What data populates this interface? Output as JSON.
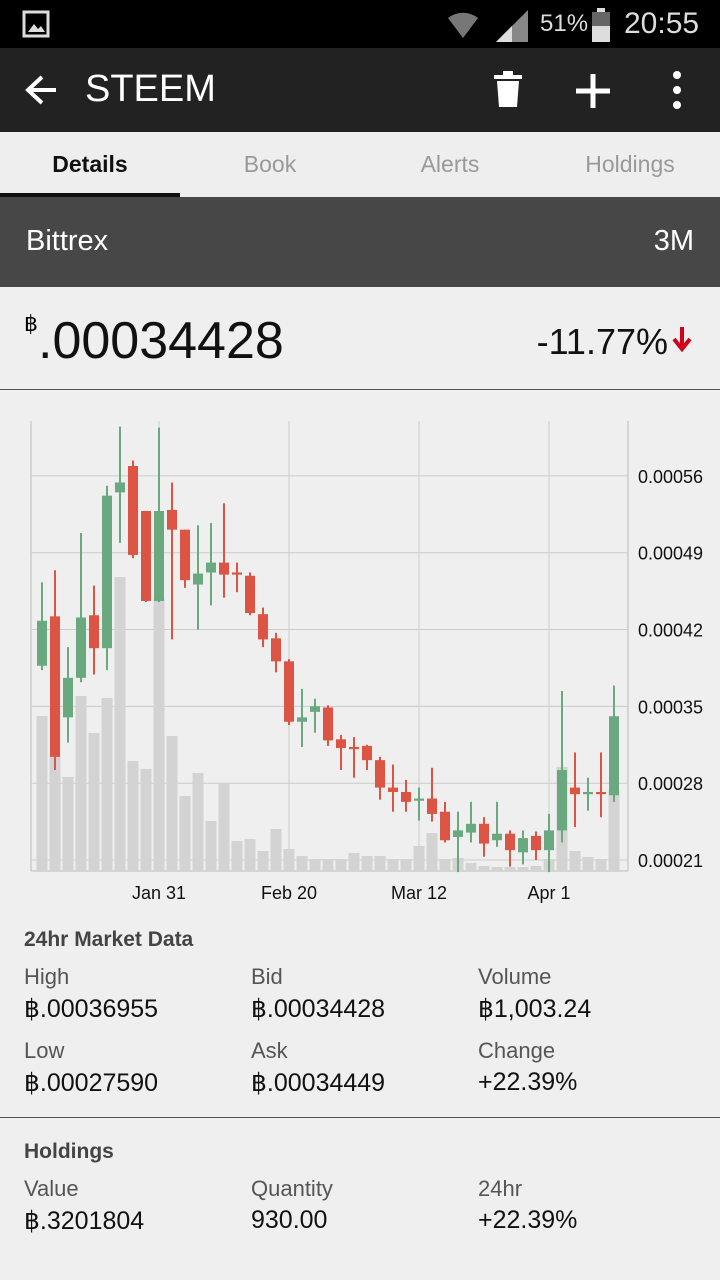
{
  "status_bar": {
    "battery": "51%",
    "time": "20:55"
  },
  "app_bar": {
    "title": "STEEM"
  },
  "tabs": [
    "Details",
    "Book",
    "Alerts",
    "Holdings"
  ],
  "exchange": {
    "name": "Bittrex",
    "range": "3M"
  },
  "price": {
    "symbol": "฿",
    "value": ".00034428",
    "change": "-11.77%"
  },
  "chart_data": {
    "type": "candlestick",
    "categories": [
      null,
      null,
      null,
      null,
      null,
      null,
      null,
      null,
      null,
      "Jan 31",
      null,
      null,
      null,
      null,
      null,
      null,
      null,
      null,
      null,
      "Feb 20",
      null,
      null,
      null,
      null,
      null,
      null,
      null,
      null,
      null,
      "Mar 12",
      null,
      null,
      null,
      null,
      null,
      null,
      null,
      null,
      null,
      "Apr 1",
      null,
      null,
      null,
      null,
      null
    ],
    "open": [
      0.000387,
      0.000432,
      0.00034,
      0.000376,
      0.000433,
      0.000403,
      0.000545,
      0.000569,
      0.000528,
      0.000446,
      0.000529,
      0.000511,
      0.000461,
      0.000472,
      0.000481,
      0.000472,
      0.000469,
      0.000434,
      0.000412,
      0.000391,
      0.000336,
      0.000345,
      0.000349,
      0.00032,
      0.000313,
      0.000314,
      0.000301,
      0.000276,
      0.000272,
      0.000264,
      0.000266,
      0.000254,
      0.000231,
      0.000235,
      0.000243,
      0.000228,
      0.000234,
      0.000217,
      0.000232,
      0.000219,
      0.000237,
      0.000276,
      0.00027,
      0.000272,
      0.000269
    ],
    "high": [
      0.000463,
      0.000474,
      0.000404,
      0.000508,
      0.00046,
      0.000551,
      0.000605,
      0.000574,
      0.000528,
      0.000604,
      0.000554,
      0.000511,
      0.000515,
      0.000517,
      0.000535,
      0.000481,
      0.000472,
      0.00044,
      0.000417,
      0.000393,
      0.000366,
      0.000357,
      0.000351,
      0.000324,
      0.000322,
      0.000315,
      0.000304,
      0.000297,
      0.000283,
      0.000276,
      0.000294,
      0.000263,
      0.000254,
      0.000263,
      0.000249,
      0.000263,
      0.000237,
      0.000237,
      0.000236,
      0.000252,
      0.000364,
      0.000308,
      0.000285,
      0.000308,
      0.000369
    ],
    "low": [
      0.000383,
      0.000292,
      0.000317,
      0.000372,
      0.000379,
      0.000383,
      0.000499,
      0.000485,
      0.000445,
      0.000445,
      0.000411,
      0.000458,
      0.00042,
      0.000442,
      0.000449,
      0.000454,
      0.000433,
      0.000404,
      0.000381,
      0.000333,
      0.000313,
      0.000326,
      0.000314,
      0.000292,
      0.000285,
      0.000292,
      0.000265,
      0.000254,
      0.000254,
      0.000246,
      0.000245,
      0.000226,
      0.000199,
      0.000226,
      0.000213,
      0.000222,
      0.000204,
      0.000206,
      0.00021,
      0.000199,
      0.000226,
      0.00024,
      0.000255,
      0.000249,
      0.000263
    ],
    "close": [
      0.000428,
      0.000304,
      0.000376,
      0.000431,
      0.000403,
      0.000542,
      0.000554,
      0.000488,
      0.000446,
      0.000528,
      0.000511,
      0.000465,
      0.000471,
      0.000481,
      0.00047,
      0.00047,
      0.000435,
      0.000411,
      0.000391,
      0.000336,
      0.00034,
      0.00035,
      0.000319,
      0.000312,
      0.000311,
      0.000301,
      0.000276,
      0.000272,
      0.000263,
      0.000266,
      0.000252,
      0.000228,
      0.000237,
      0.000243,
      0.000225,
      0.000234,
      0.000219,
      0.00023,
      0.000219,
      0.000237,
      0.000292,
      0.00027,
      0.000272,
      0.00027,
      0.000341
    ],
    "volume": [
      155,
      118,
      94,
      175,
      138,
      173,
      294,
      110,
      102,
      272,
      135,
      75,
      98,
      50,
      88,
      30,
      32,
      20,
      42,
      22,
      15,
      12,
      12,
      12,
      18,
      15,
      15,
      12,
      12,
      25,
      38,
      12,
      13,
      8,
      5,
      4,
      4,
      4,
      5,
      12,
      104,
      20,
      14,
      12,
      80
    ],
    "up_color": "#6aa97f",
    "down_color": "#dc5443",
    "volume_color": "#d3d3d3",
    "ylim": [
      0.0002,
      0.00061
    ],
    "yticks": [
      0.00021,
      0.00028,
      0.00035,
      0.00042,
      0.00049,
      0.00056
    ],
    "y2lim": [
      0,
      450
    ],
    "grid": true
  },
  "market": {
    "title": "24hr Market Data",
    "items": [
      {
        "label": "High",
        "value": "฿.00036955"
      },
      {
        "label": "Bid",
        "value": "฿.00034428"
      },
      {
        "label": "Volume",
        "value": "฿1,003.24"
      },
      {
        "label": "Low",
        "value": "฿.00027590"
      },
      {
        "label": "Ask",
        "value": "฿.00034449"
      },
      {
        "label": "Change",
        "value": "+22.39%"
      }
    ]
  },
  "holdings": {
    "title": "Holdings",
    "items": [
      {
        "label": "Value",
        "value": "฿.3201804"
      },
      {
        "label": "Quantity",
        "value": "930.00"
      },
      {
        "label": "24hr",
        "value": "+22.39%"
      }
    ]
  }
}
